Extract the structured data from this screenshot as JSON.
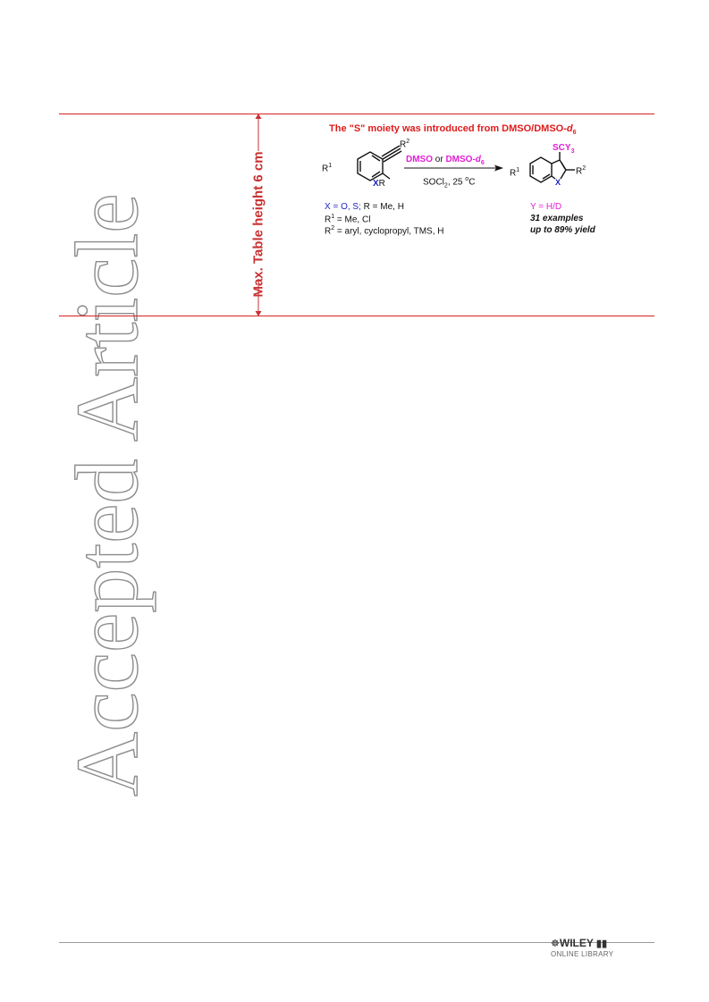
{
  "watermark": "Accepted Article",
  "ruler_label": "Max. Table height 6 cm",
  "scheme": {
    "title": "The \"S\" moiety was introduced from DMSO/DMSO-",
    "title_sub": "d",
    "title_subsub": "6",
    "reactant": {
      "r2": "R",
      "r2_sup": "2",
      "r1": "R",
      "r1_sup": "1",
      "x": "X",
      "r": "R"
    },
    "arrow": {
      "reagent_a": "DMSO",
      "or": " or ",
      "reagent_b": "DMSO-",
      "reagent_b_italic": "d",
      "reagent_b_sub": "6",
      "conditions": "SOCl",
      "conditions_sub": "2",
      "conditions_rest": ", 25 ",
      "conditions_sup": "o",
      "conditions_end": "C"
    },
    "product": {
      "scy": "SCY",
      "scy_sub": "3",
      "r1": "R",
      "r1_sup": "1",
      "r2": "R",
      "r2_sup": "2",
      "x": "X"
    },
    "legend": {
      "line1_a": "X = O, S;",
      "line1_b": " R = Me, H",
      "line2": "R",
      "line2_sup": "1",
      "line2_rest": " = Me, Cl",
      "line3": "R",
      "line3_sup": "2",
      "line3_rest": " = aryl, cyclopropyl, TMS, H",
      "y_line": "Y = H/D",
      "examples": "31 examples",
      "yield": "up to 89% yield"
    }
  },
  "footer": {
    "logo_name": "WILEY",
    "logo_sub": "ONLINE LIBRARY"
  }
}
